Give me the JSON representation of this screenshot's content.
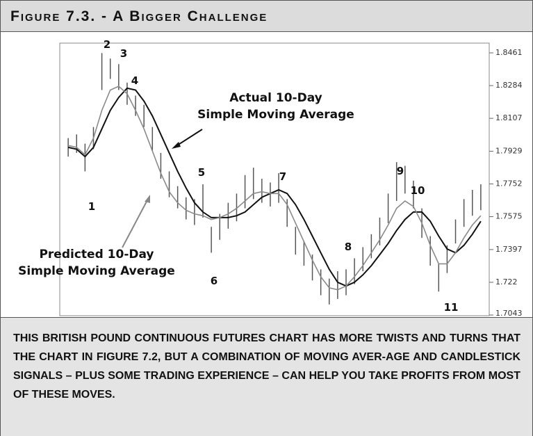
{
  "header": {
    "title": "Figure 7.3. - A Bigger Challenge"
  },
  "chart_data": {
    "type": "line",
    "annotations": [
      "Actual 10-Day",
      "Simple Moving Average",
      "Predicted 10-Day",
      "Simple Moving Average"
    ],
    "point_labels": [
      "1",
      "2",
      "3",
      "4",
      "5",
      "6",
      "7",
      "8",
      "9",
      "10",
      "11"
    ],
    "x": [
      0,
      1,
      2,
      3,
      4,
      5,
      6,
      7,
      8,
      9,
      10,
      11,
      12,
      13,
      14,
      15,
      16,
      17,
      18,
      19,
      20,
      21,
      22,
      23,
      24,
      25,
      26,
      27,
      28,
      29,
      30,
      31,
      32,
      33,
      34,
      35,
      36,
      37,
      38,
      39,
      40,
      41,
      42,
      43,
      44,
      45,
      46,
      47,
      48,
      49
    ],
    "xlim": [
      -1,
      50
    ],
    "ylim": [
      1.7043,
      1.851
    ],
    "yticks": [
      1.8461,
      1.8284,
      1.8107,
      1.7929,
      1.7752,
      1.7575,
      1.7397,
      1.722,
      1.7043
    ],
    "high": [
      1.8,
      1.802,
      1.797,
      1.806,
      1.846,
      1.843,
      1.84,
      1.83,
      1.823,
      1.818,
      1.806,
      1.792,
      1.782,
      1.774,
      1.768,
      1.767,
      1.775,
      1.752,
      1.759,
      1.765,
      1.77,
      1.78,
      1.784,
      1.778,
      1.776,
      1.781,
      1.767,
      1.752,
      1.744,
      1.737,
      1.729,
      1.724,
      1.728,
      1.729,
      1.735,
      1.741,
      1.748,
      1.757,
      1.77,
      1.787,
      1.785,
      1.777,
      1.762,
      1.747,
      1.732,
      1.742,
      1.756,
      1.767,
      1.772,
      1.775
    ],
    "low": [
      1.79,
      1.792,
      1.782,
      1.794,
      1.826,
      1.832,
      1.826,
      1.818,
      1.812,
      1.806,
      1.793,
      1.778,
      1.768,
      1.762,
      1.756,
      1.753,
      1.757,
      1.738,
      1.745,
      1.751,
      1.755,
      1.762,
      1.767,
      1.765,
      1.763,
      1.765,
      1.752,
      1.737,
      1.731,
      1.723,
      1.715,
      1.71,
      1.713,
      1.715,
      1.721,
      1.728,
      1.735,
      1.742,
      1.754,
      1.766,
      1.77,
      1.762,
      1.746,
      1.731,
      1.717,
      1.727,
      1.743,
      1.752,
      1.758,
      1.761
    ],
    "series": [
      {
        "color": "#111111",
        "values": [
          1.795,
          1.794,
          1.79,
          1.795,
          1.805,
          1.815,
          1.822,
          1.827,
          1.826,
          1.82,
          1.812,
          1.802,
          1.792,
          1.782,
          1.773,
          1.765,
          1.76,
          1.757,
          1.757,
          1.757,
          1.758,
          1.76,
          1.764,
          1.768,
          1.77,
          1.772,
          1.77,
          1.764,
          1.756,
          1.747,
          1.738,
          1.729,
          1.722,
          1.72,
          1.722,
          1.726,
          1.731,
          1.737,
          1.743,
          1.75,
          1.756,
          1.76,
          1.76,
          1.755,
          1.747,
          1.74,
          1.738,
          1.742,
          1.748,
          1.755
        ]
      },
      {
        "color": "#8a8a8a",
        "values": [
          1.796,
          1.795,
          1.791,
          1.8,
          1.815,
          1.826,
          1.828,
          1.824,
          1.815,
          1.805,
          1.793,
          1.781,
          1.771,
          1.765,
          1.761,
          1.759,
          1.758,
          1.756,
          1.757,
          1.759,
          1.762,
          1.766,
          1.77,
          1.771,
          1.77,
          1.77,
          1.764,
          1.754,
          1.744,
          1.734,
          1.725,
          1.719,
          1.718,
          1.72,
          1.725,
          1.731,
          1.738,
          1.745,
          1.753,
          1.762,
          1.766,
          1.763,
          1.754,
          1.742,
          1.732,
          1.732,
          1.738,
          1.746,
          1.753,
          1.758
        ]
      }
    ]
  },
  "caption": "THIS BRITISH POUND CONTINUOUS FUTURES CHART HAS MORE TWISTS AND TURNS THAT THE CHART IN FIGURE 7.2, BUT A COMBINATION OF MOVING AVER-AGE AND CANDLESTICK SIGNALS – PLUS SOME TRADING EXPERIENCE – CAN HELP YOU TAKE PROFITS FROM MOST OF THESE MOVES."
}
